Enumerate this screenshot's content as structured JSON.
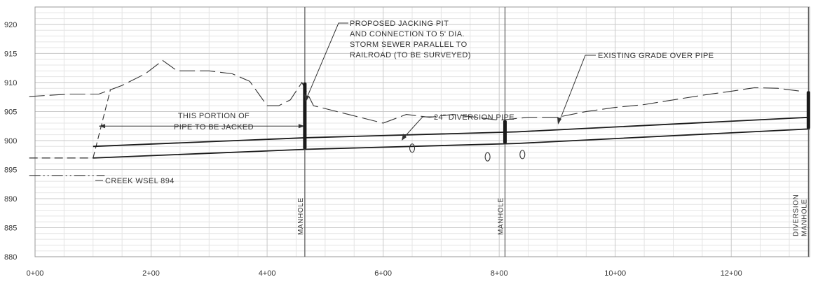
{
  "chart_data": {
    "type": "line",
    "x_axis": {
      "ticks": [
        0,
        200,
        400,
        600,
        800,
        1000,
        1200
      ],
      "tick_labels": [
        "0+00",
        "2+00",
        "4+00",
        "6+00",
        "8+00",
        "10+00",
        "12+00"
      ],
      "range": [
        0,
        1335
      ]
    },
    "y_axis": {
      "ticks": [
        880,
        885,
        890,
        895,
        900,
        905,
        910,
        915,
        920
      ],
      "tick_labels": [
        "880",
        "885",
        "890",
        "895",
        "900",
        "905",
        "910",
        "915",
        "920"
      ],
      "range": [
        880,
        923
      ]
    },
    "grid": true,
    "existing_grade": [
      [
        -10,
        907.6
      ],
      [
        60,
        908
      ],
      [
        110,
        908
      ],
      [
        150,
        909.5
      ],
      [
        190,
        911.5
      ],
      [
        220,
        913.8
      ],
      [
        245,
        912
      ],
      [
        300,
        912
      ],
      [
        340,
        911.5
      ],
      [
        370,
        910.2
      ],
      [
        400,
        906
      ],
      [
        420,
        906
      ],
      [
        440,
        907
      ],
      [
        460,
        910
      ],
      [
        480,
        906
      ],
      [
        520,
        905
      ],
      [
        560,
        904
      ],
      [
        600,
        903
      ],
      [
        640,
        904.5
      ],
      [
        680,
        904
      ],
      [
        720,
        904.5
      ],
      [
        760,
        904
      ],
      [
        800,
        903.5
      ],
      [
        850,
        904
      ],
      [
        900,
        904
      ],
      [
        950,
        905
      ],
      [
        1000,
        905.7
      ],
      [
        1050,
        906.2
      ],
      [
        1100,
        907
      ],
      [
        1150,
        907.8
      ],
      [
        1200,
        908.5
      ],
      [
        1240,
        909.1
      ],
      [
        1280,
        909
      ],
      [
        1320,
        908.5
      ]
    ],
    "embankment_slope": [
      [
        100,
        897
      ],
      [
        130,
        908.8
      ]
    ],
    "pipe_top": [
      [
        100,
        899
      ],
      [
        470,
        900.5
      ],
      [
        830,
        901.5
      ],
      [
        1335,
        904
      ]
    ],
    "pipe_bottom": [
      [
        100,
        897
      ],
      [
        470,
        898.5
      ],
      [
        830,
        899.5
      ],
      [
        1335,
        902
      ]
    ],
    "channel_bed": [
      [
        -10,
        897
      ],
      [
        100,
        897
      ]
    ],
    "creek_wsel": [
      [
        -10,
        894
      ],
      [
        120,
        894
      ]
    ],
    "creek_wsel_value": 894,
    "manholes": [
      {
        "station": 465,
        "bottom": 898.5,
        "top": 910,
        "label": "MANHOLE"
      },
      {
        "station": 810,
        "bottom": 899.5,
        "top": 903.5,
        "label": "MANHOLE"
      },
      {
        "station": 1333,
        "bottom": 902,
        "top": 908.5,
        "label_lines": [
          "DIVERSION",
          "MANHOLE"
        ]
      }
    ],
    "jacked_extent": {
      "from": 110,
      "to": 465,
      "elevation": 902.5
    },
    "markers": [
      [
        650,
        898.7
      ],
      [
        780,
        897.2
      ],
      [
        840,
        897.6
      ]
    ]
  },
  "annotations": {
    "jacking_pit": [
      "PROPOSED JACKING PIT",
      "AND CONNECTION TO 5' DIA.",
      "STORM SEWER PARALLEL TO",
      "RAILROAD (TO BE SURVEYED)"
    ],
    "existing_grade": "EXISTING GRADE OVER PIPE",
    "diversion_pipe": "24\" DIVERSION PIPE",
    "jacked_portion": [
      "THIS PORTION OF",
      "PIPE TO BE JACKED"
    ],
    "creek_wsel": "CREEK WSEL 894"
  },
  "colors": {
    "background": "#ffffff",
    "grid_major": "#c8c8c8",
    "grid_minor": "#e4e4e4",
    "ink": "#1a1a1a",
    "text": "#333333"
  }
}
